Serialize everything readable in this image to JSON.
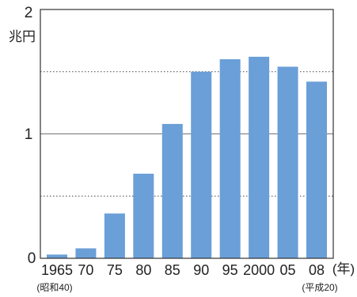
{
  "chart_data": {
    "type": "bar",
    "ylabel": "兆円",
    "ylim": [
      0,
      2
    ],
    "y_ticks": [
      "0",
      "1",
      "2"
    ],
    "grid": "dotted lines at 0.5 and 1.5, solid line at 1",
    "categories": [
      "1965",
      "70",
      "75",
      "80",
      "85",
      "90",
      "95",
      "2000",
      "05",
      "08"
    ],
    "values": [
      0.03,
      0.08,
      0.36,
      0.68,
      1.08,
      1.5,
      1.6,
      1.62,
      1.54,
      1.42
    ],
    "x_unit": "(年)",
    "x_notes": {
      "start": "(昭和40)",
      "end": "(平成20)"
    },
    "bar_color": "#6a9fd8"
  }
}
